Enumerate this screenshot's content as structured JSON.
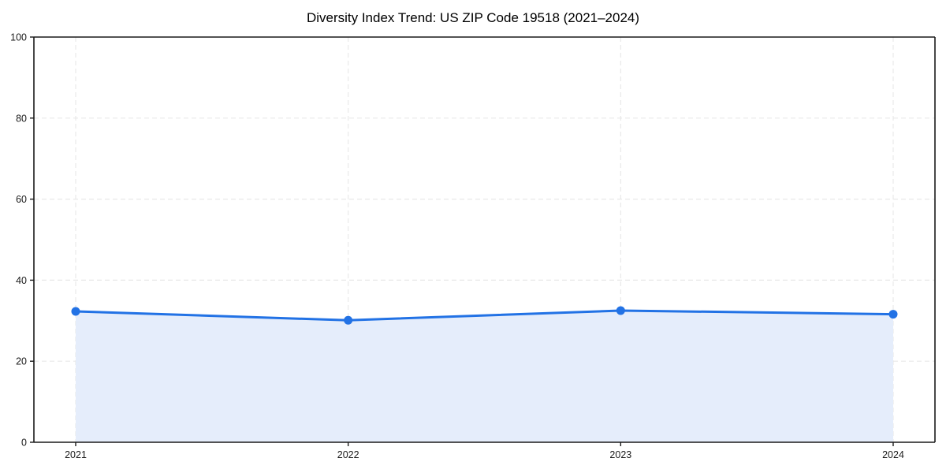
{
  "chart_data": {
    "type": "area",
    "title": "Diversity Index Trend: US ZIP Code 19518 (2021–2024)",
    "categories": [
      "2021",
      "2022",
      "2023",
      "2024"
    ],
    "values": [
      32.3,
      30.1,
      32.5,
      31.6
    ],
    "xlabel": "",
    "ylabel": "",
    "ylim": [
      0,
      100
    ],
    "yticks": [
      0,
      20,
      40,
      60,
      80,
      100
    ],
    "grid": true,
    "grid_style": "dashed",
    "legend": false,
    "colors": {
      "line": "#2272e5",
      "marker": "#2272e5",
      "area_fill": "#e5edfb",
      "grid": "#e8e8e8",
      "axis": "#1a1a1a",
      "background": "#ffffff",
      "title_text": "#000000",
      "tick_text": "#1a1a1a"
    }
  }
}
